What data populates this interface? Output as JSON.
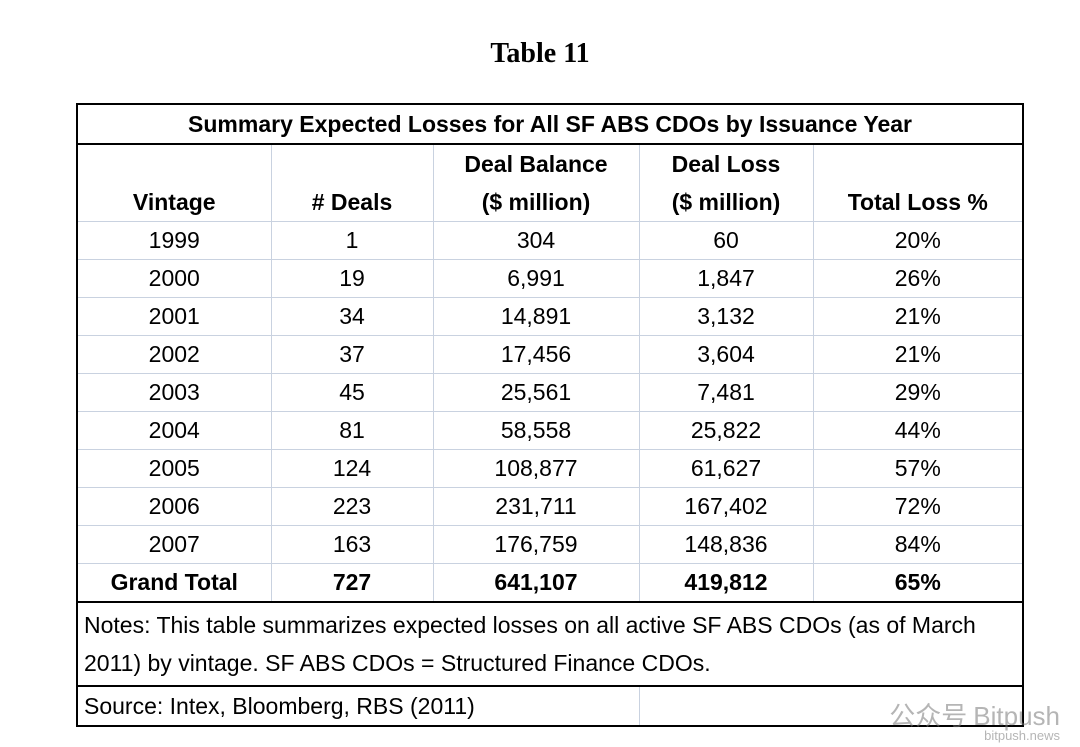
{
  "title": "Table 11",
  "table": {
    "caption": "Summary Expected Losses for All SF ABS CDOs by Issuance Year",
    "headers": [
      [
        "Vintage"
      ],
      [
        "# Deals"
      ],
      [
        "Deal Balance",
        "($ million)"
      ],
      [
        "Deal Loss",
        "($ million)"
      ],
      [
        "Total Loss %"
      ]
    ],
    "rows": [
      [
        "1999",
        "1",
        "304",
        "60",
        "20%"
      ],
      [
        "2000",
        "19",
        "6,991",
        "1,847",
        "26%"
      ],
      [
        "2001",
        "34",
        "14,891",
        "3,132",
        "21%"
      ],
      [
        "2002",
        "37",
        "17,456",
        "3,604",
        "21%"
      ],
      [
        "2003",
        "45",
        "25,561",
        "7,481",
        "29%"
      ],
      [
        "2004",
        "81",
        "58,558",
        "25,822",
        "44%"
      ],
      [
        "2005",
        "124",
        "108,877",
        "61,627",
        "57%"
      ],
      [
        "2006",
        "223",
        "231,711",
        "167,402",
        "72%"
      ],
      [
        "2007",
        "163",
        "176,759",
        "148,836",
        "84%"
      ]
    ],
    "total": [
      "Grand Total",
      "727",
      "641,107",
      "419,812",
      "65%"
    ],
    "notes": "Notes: This table summarizes expected losses on all active SF ABS CDOs (as of March 2011) by vintage. SF ABS CDOs = Structured Finance CDOs.",
    "source": "Source: Intex, Bloomberg, RBS (2011)"
  },
  "watermark": [
    "公众号",
    "Bitpush",
    "bitpush.news"
  ]
}
